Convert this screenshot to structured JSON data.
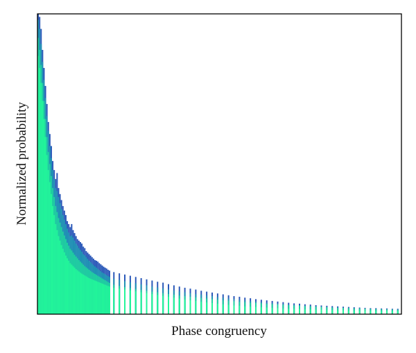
{
  "chart_data": {
    "type": "bar",
    "title": "",
    "xlabel": "Phase congruency",
    "ylabel": "Normalized probability",
    "ylim": [
      0,
      1
    ],
    "xlim": [
      0,
      1
    ],
    "grid": false,
    "legend": "none",
    "x_ticks_shown": false,
    "y_ticks_shown": false,
    "layer_colors": [
      "#2a58b8",
      "#1f92b4",
      "#1fcfa0",
      "#22f59a"
    ],
    "x": [
      0.002,
      0.006,
      0.01,
      0.014,
      0.018,
      0.022,
      0.026,
      0.03,
      0.034,
      0.038,
      0.042,
      0.046,
      0.05,
      0.054,
      0.058,
      0.062,
      0.066,
      0.07,
      0.074,
      0.078,
      0.082,
      0.086,
      0.09,
      0.094,
      0.098,
      0.102,
      0.106,
      0.11,
      0.114,
      0.118,
      0.122,
      0.126,
      0.13,
      0.134,
      0.138,
      0.142,
      0.146,
      0.15,
      0.154,
      0.158,
      0.162,
      0.166,
      0.17,
      0.174,
      0.178,
      0.182,
      0.186,
      0.19,
      0.194,
      0.198,
      0.21,
      0.225,
      0.24,
      0.255,
      0.27,
      0.285,
      0.3,
      0.315,
      0.33,
      0.345,
      0.36,
      0.375,
      0.39,
      0.405,
      0.42,
      0.435,
      0.45,
      0.465,
      0.48,
      0.495,
      0.51,
      0.525,
      0.54,
      0.555,
      0.57,
      0.585,
      0.6,
      0.615,
      0.63,
      0.645,
      0.66,
      0.675,
      0.69,
      0.705,
      0.72,
      0.735,
      0.75,
      0.765,
      0.78,
      0.795,
      0.81,
      0.825,
      0.84,
      0.855,
      0.87,
      0.885,
      0.9,
      0.915,
      0.93,
      0.945,
      0.96,
      0.975,
      0.99
    ],
    "series": [
      {
        "values": [
          1.0,
          0.99,
          0.95,
          0.88,
          0.82,
          0.76,
          0.7,
          0.64,
          0.6,
          0.56,
          0.51,
          0.48,
          0.45,
          0.47,
          0.42,
          0.4,
          0.38,
          0.36,
          0.345,
          0.33,
          0.31,
          0.3,
          0.29,
          0.3,
          0.28,
          0.27,
          0.26,
          0.25,
          0.245,
          0.24,
          0.235,
          0.225,
          0.22,
          0.21,
          0.205,
          0.2,
          0.195,
          0.19,
          0.185,
          0.18,
          0.178,
          0.175,
          0.17,
          0.166,
          0.162,
          0.158,
          0.155,
          0.152,
          0.148,
          0.145,
          0.14,
          0.136,
          0.132,
          0.128,
          0.124,
          0.12,
          0.116,
          0.112,
          0.108,
          0.105,
          0.1,
          0.096,
          0.092,
          0.088,
          0.085,
          0.082,
          0.078,
          0.075,
          0.072,
          0.069,
          0.066,
          0.063,
          0.06,
          0.058,
          0.055,
          0.053,
          0.05,
          0.048,
          0.046,
          0.044,
          0.042,
          0.04,
          0.038,
          0.036,
          0.035,
          0.033,
          0.032,
          0.03,
          0.029,
          0.028,
          0.027,
          0.026,
          0.025,
          0.024,
          0.023,
          0.022,
          0.021,
          0.02,
          0.02,
          0.019,
          0.019,
          0.018,
          0.018
        ]
      },
      {
        "values": [
          0.98,
          0.95,
          0.9,
          0.84,
          0.78,
          0.72,
          0.66,
          0.61,
          0.56,
          0.52,
          0.48,
          0.45,
          0.42,
          0.41,
          0.39,
          0.37,
          0.35,
          0.33,
          0.315,
          0.3,
          0.285,
          0.272,
          0.26,
          0.262,
          0.255,
          0.245,
          0.235,
          0.228,
          0.22,
          0.214,
          0.208,
          0.2,
          0.196,
          0.19,
          0.184,
          0.178,
          0.173,
          0.168,
          0.163,
          0.159,
          0.155,
          0.151,
          0.147,
          0.143,
          0.139,
          0.136,
          0.133,
          0.13,
          0.127,
          0.124,
          0.118,
          0.114,
          0.11,
          0.106,
          0.103,
          0.099,
          0.096,
          0.092,
          0.089,
          0.086,
          0.082,
          0.079,
          0.076,
          0.073,
          0.07,
          0.067,
          0.065,
          0.062,
          0.06,
          0.057,
          0.055,
          0.052,
          0.05,
          0.048,
          0.046,
          0.044,
          0.042,
          0.04,
          0.038,
          0.037,
          0.035,
          0.034,
          0.032,
          0.031,
          0.03,
          0.028,
          0.027,
          0.026,
          0.025,
          0.024,
          0.023,
          0.022,
          0.021,
          0.021,
          0.02,
          0.019,
          0.018,
          0.018,
          0.017,
          0.017,
          0.016,
          0.016,
          0.015
        ]
      },
      {
        "values": [
          0.92,
          0.88,
          0.83,
          0.77,
          0.71,
          0.65,
          0.59,
          0.54,
          0.5,
          0.46,
          0.42,
          0.39,
          0.36,
          0.34,
          0.32,
          0.305,
          0.29,
          0.275,
          0.262,
          0.25,
          0.238,
          0.228,
          0.218,
          0.212,
          0.205,
          0.198,
          0.192,
          0.186,
          0.18,
          0.175,
          0.17,
          0.165,
          0.16,
          0.156,
          0.152,
          0.148,
          0.144,
          0.14,
          0.137,
          0.134,
          0.131,
          0.128,
          0.125,
          0.122,
          0.119,
          0.116,
          0.113,
          0.11,
          0.107,
          0.104,
          0.098,
          0.094,
          0.09,
          0.087,
          0.084,
          0.081,
          0.078,
          0.075,
          0.073,
          0.07,
          0.067,
          0.065,
          0.062,
          0.06,
          0.058,
          0.056,
          0.054,
          0.052,
          0.05,
          0.048,
          0.046,
          0.045,
          0.043,
          0.041,
          0.04,
          0.038,
          0.037,
          0.036,
          0.034,
          0.033,
          0.032,
          0.031,
          0.03,
          0.029,
          0.028,
          0.027,
          0.026,
          0.025,
          0.024,
          0.023,
          0.022,
          0.021,
          0.021,
          0.02,
          0.019,
          0.019,
          0.018,
          0.017,
          0.017,
          0.016,
          0.016,
          0.015,
          0.015
        ]
      },
      {
        "values": [
          0.86,
          0.82,
          0.77,
          0.71,
          0.65,
          0.59,
          0.53,
          0.48,
          0.44,
          0.4,
          0.36,
          0.33,
          0.3,
          0.28,
          0.26,
          0.245,
          0.23,
          0.218,
          0.206,
          0.195,
          0.186,
          0.178,
          0.17,
          0.165,
          0.16,
          0.155,
          0.15,
          0.146,
          0.142,
          0.138,
          0.135,
          0.132,
          0.129,
          0.126,
          0.123,
          0.12,
          0.118,
          0.116,
          0.114,
          0.112,
          0.11,
          0.108,
          0.106,
          0.104,
          0.102,
          0.1,
          0.098,
          0.096,
          0.094,
          0.092,
          0.088,
          0.085,
          0.082,
          0.079,
          0.076,
          0.073,
          0.07,
          0.067,
          0.064,
          0.061,
          0.058,
          0.055,
          0.052,
          0.049,
          0.046,
          0.044,
          0.041,
          0.039,
          0.037,
          0.035,
          0.033,
          0.031,
          0.029,
          0.028,
          0.026,
          0.025,
          0.024,
          0.023,
          0.022,
          0.021,
          0.02,
          0.019,
          0.018,
          0.018,
          0.017,
          0.016,
          0.016,
          0.015,
          0.015,
          0.014,
          0.014,
          0.013,
          0.013,
          0.012,
          0.012,
          0.012,
          0.011,
          0.011,
          0.011,
          0.01,
          0.01,
          0.01,
          0.01
        ]
      }
    ]
  }
}
